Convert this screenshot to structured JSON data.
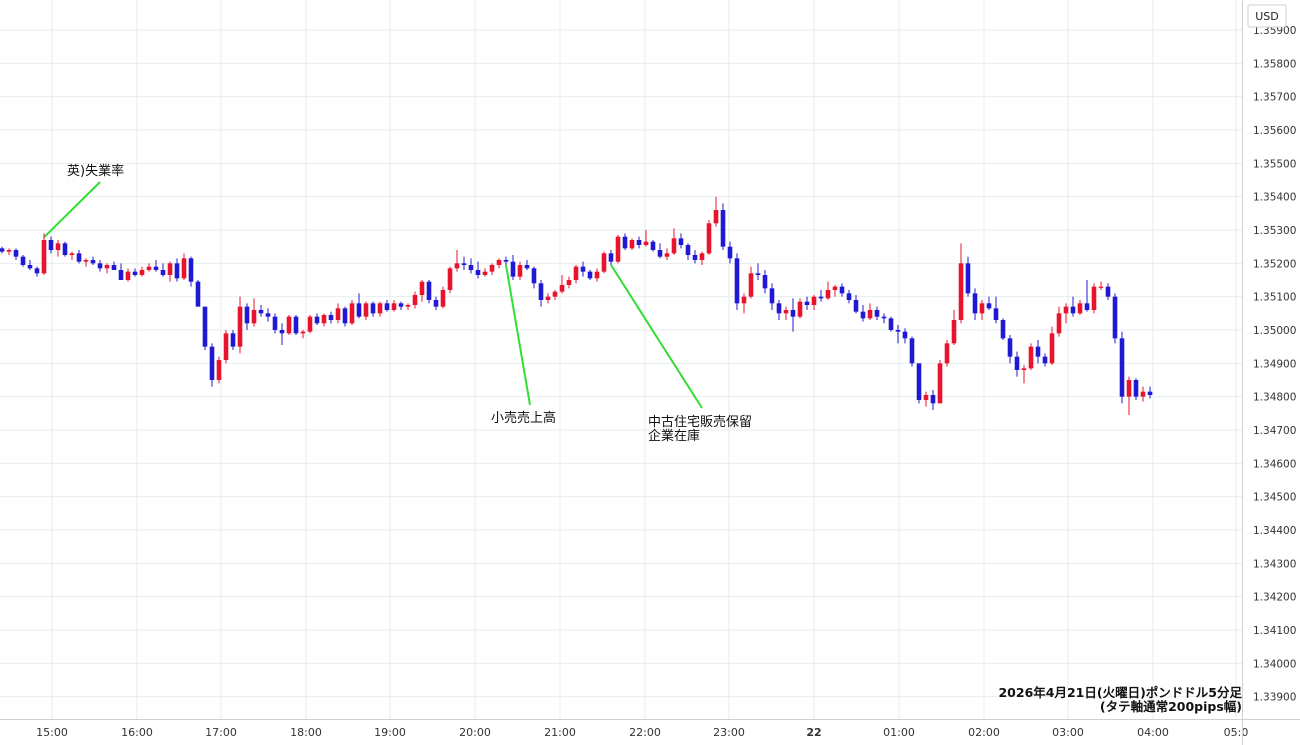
{
  "chart_data": {
    "type": "candlestick",
    "currency_badge": "USD",
    "y_ticks": [
      "1.35900",
      "1.35800",
      "1.35700",
      "1.35600",
      "1.35500",
      "1.35400",
      "1.35300",
      "1.35200",
      "1.35100",
      "1.35000",
      "1.34900",
      "1.34800",
      "1.34700",
      "1.34600",
      "1.34500",
      "1.34400",
      "1.34300",
      "1.34200",
      "1.34100",
      "1.34000",
      "1.33900"
    ],
    "ylim": [
      1.3386,
      1.3596
    ],
    "x_ticks": [
      "15:00",
      "16:00",
      "17:00",
      "18:00",
      "19:00",
      "20:00",
      "21:00",
      "22:00",
      "23:00",
      "22",
      "01:00",
      "02:00",
      "03:00",
      "04:00",
      "05:0"
    ],
    "bold_x_tick": "22",
    "footer_line1": "2026年4月21日(火曜日)ポンドドル5分足",
    "footer_line2": "(タテ軸通常200pips幅)",
    "annotations": [
      {
        "text": "英)失業率",
        "bar": 6
      },
      {
        "text": "小売売上高",
        "bar": 72
      },
      {
        "text": "中古住宅販売保留",
        "text2": "企業在庫",
        "bar": 87
      }
    ],
    "colors": {
      "up": "#e8142d",
      "down": "#1f19d4",
      "grid": "#e6eeee",
      "axis": "#d0d0d0",
      "annotation_line": "#33dd33"
    },
    "candles": [
      [
        1.35245,
        1.3525,
        1.3523,
        1.35235
      ],
      [
        1.35235,
        1.35245,
        1.35225,
        1.3524
      ],
      [
        1.3524,
        1.35245,
        1.3521,
        1.3522
      ],
      [
        1.3522,
        1.35225,
        1.3519,
        1.35195
      ],
      [
        1.35195,
        1.3521,
        1.3518,
        1.35185
      ],
      [
        1.35185,
        1.3519,
        1.3516,
        1.3517
      ],
      [
        1.3517,
        1.3529,
        1.35165,
        1.3527
      ],
      [
        1.3527,
        1.3528,
        1.3523,
        1.3524
      ],
      [
        1.3524,
        1.3527,
        1.3522,
        1.3526
      ],
      [
        1.3526,
        1.35265,
        1.3522,
        1.35225
      ],
      [
        1.35225,
        1.35235,
        1.3521,
        1.3523
      ],
      [
        1.3523,
        1.3524,
        1.352,
        1.35205
      ],
      [
        1.35205,
        1.35215,
        1.3519,
        1.3521
      ],
      [
        1.3521,
        1.3522,
        1.35195,
        1.352
      ],
      [
        1.352,
        1.3521,
        1.35175,
        1.35185
      ],
      [
        1.35185,
        1.352,
        1.3517,
        1.35195
      ],
      [
        1.35195,
        1.35205,
        1.3518,
        1.3518
      ],
      [
        1.3518,
        1.352,
        1.3515,
        1.3515
      ],
      [
        1.3515,
        1.35185,
        1.35145,
        1.35175
      ],
      [
        1.35175,
        1.35185,
        1.3516,
        1.35165
      ],
      [
        1.35165,
        1.3519,
        1.3516,
        1.3518
      ],
      [
        1.3518,
        1.352,
        1.35175,
        1.3519
      ],
      [
        1.3519,
        1.3521,
        1.35175,
        1.3518
      ],
      [
        1.3518,
        1.352,
        1.3516,
        1.35165
      ],
      [
        1.35165,
        1.35205,
        1.35145,
        1.352
      ],
      [
        1.352,
        1.35215,
        1.35145,
        1.35155
      ],
      [
        1.35155,
        1.3523,
        1.3515,
        1.35215
      ],
      [
        1.35215,
        1.3522,
        1.3513,
        1.35145
      ],
      [
        1.35145,
        1.3515,
        1.3507,
        1.3507
      ],
      [
        1.3507,
        1.3507,
        1.3494,
        1.3495
      ],
      [
        1.3495,
        1.3496,
        1.3483,
        1.3485
      ],
      [
        1.3485,
        1.3492,
        1.3484,
        1.3491
      ],
      [
        1.3491,
        1.35,
        1.349,
        1.3499
      ],
      [
        1.3499,
        1.35,
        1.3494,
        1.3495
      ],
      [
        1.3495,
        1.351,
        1.3493,
        1.3507
      ],
      [
        1.3507,
        1.3508,
        1.35,
        1.3502
      ],
      [
        1.3502,
        1.35095,
        1.3501,
        1.3506
      ],
      [
        1.3506,
        1.35075,
        1.3504,
        1.3505
      ],
      [
        1.3505,
        1.35065,
        1.35025,
        1.3504
      ],
      [
        1.3504,
        1.3505,
        1.3499,
        1.35
      ],
      [
        1.35,
        1.3502,
        1.34955,
        1.3499
      ],
      [
        1.3499,
        1.35045,
        1.34985,
        1.3504
      ],
      [
        1.3504,
        1.35045,
        1.34985,
        1.3499
      ],
      [
        1.3499,
        1.35,
        1.34975,
        1.34995
      ],
      [
        1.34995,
        1.35045,
        1.3499,
        1.3504
      ],
      [
        1.3504,
        1.3505,
        1.35015,
        1.3502
      ],
      [
        1.3502,
        1.3505,
        1.3501,
        1.35045
      ],
      [
        1.35045,
        1.35055,
        1.3502,
        1.3503
      ],
      [
        1.3503,
        1.3508,
        1.3502,
        1.35065
      ],
      [
        1.35065,
        1.3507,
        1.3501,
        1.3502
      ],
      [
        1.3502,
        1.3509,
        1.35015,
        1.3508
      ],
      [
        1.3508,
        1.3511,
        1.35035,
        1.3504
      ],
      [
        1.3504,
        1.35085,
        1.3503,
        1.3508
      ],
      [
        1.3508,
        1.35085,
        1.3504,
        1.3505
      ],
      [
        1.3505,
        1.35085,
        1.3504,
        1.3508
      ],
      [
        1.3508,
        1.3509,
        1.35055,
        1.3506
      ],
      [
        1.3506,
        1.3509,
        1.35055,
        1.3508
      ],
      [
        1.3508,
        1.35085,
        1.3506,
        1.3507
      ],
      [
        1.3507,
        1.3508,
        1.3506,
        1.35075
      ],
      [
        1.35075,
        1.35115,
        1.35065,
        1.35105
      ],
      [
        1.35105,
        1.3515,
        1.35085,
        1.35145
      ],
      [
        1.35145,
        1.3515,
        1.3508,
        1.3509
      ],
      [
        1.3509,
        1.351,
        1.3506,
        1.3507
      ],
      [
        1.3507,
        1.3513,
        1.35065,
        1.3512
      ],
      [
        1.3512,
        1.3519,
        1.3511,
        1.35185
      ],
      [
        1.35185,
        1.3524,
        1.35175,
        1.352
      ],
      [
        1.352,
        1.3522,
        1.3518,
        1.35195
      ],
      [
        1.35195,
        1.35215,
        1.3517,
        1.3518
      ],
      [
        1.3518,
        1.35205,
        1.35155,
        1.35165
      ],
      [
        1.35165,
        1.35185,
        1.3516,
        1.35175
      ],
      [
        1.35175,
        1.352,
        1.35165,
        1.35195
      ],
      [
        1.35195,
        1.35215,
        1.35185,
        1.3521
      ],
      [
        1.3521,
        1.3522,
        1.35195,
        1.35205
      ],
      [
        1.35205,
        1.35225,
        1.3515,
        1.3516
      ],
      [
        1.3516,
        1.35205,
        1.3515,
        1.35195
      ],
      [
        1.35195,
        1.3521,
        1.3518,
        1.35185
      ],
      [
        1.35185,
        1.3519,
        1.35125,
        1.3514
      ],
      [
        1.3514,
        1.3515,
        1.3507,
        1.3509
      ],
      [
        1.3509,
        1.3511,
        1.3508,
        1.351
      ],
      [
        1.351,
        1.3512,
        1.3509,
        1.35115
      ],
      [
        1.35115,
        1.35165,
        1.3511,
        1.35135
      ],
      [
        1.35135,
        1.3516,
        1.35125,
        1.3515
      ],
      [
        1.3515,
        1.35195,
        1.3514,
        1.3519
      ],
      [
        1.3519,
        1.35205,
        1.3516,
        1.35175
      ],
      [
        1.35175,
        1.3518,
        1.3515,
        1.35155
      ],
      [
        1.35155,
        1.35185,
        1.35145,
        1.35175
      ],
      [
        1.35175,
        1.35235,
        1.3517,
        1.3523
      ],
      [
        1.3523,
        1.3524,
        1.35195,
        1.35205
      ],
      [
        1.35205,
        1.35285,
        1.352,
        1.3528
      ],
      [
        1.3528,
        1.3529,
        1.3524,
        1.35245
      ],
      [
        1.35245,
        1.35275,
        1.3524,
        1.3527
      ],
      [
        1.3527,
        1.3528,
        1.35245,
        1.35255
      ],
      [
        1.35255,
        1.353,
        1.3525,
        1.35265
      ],
      [
        1.35265,
        1.3527,
        1.35235,
        1.3524
      ],
      [
        1.3524,
        1.3526,
        1.35215,
        1.3522
      ],
      [
        1.3522,
        1.35245,
        1.3521,
        1.3523
      ],
      [
        1.3523,
        1.35305,
        1.35225,
        1.35275
      ],
      [
        1.35275,
        1.3529,
        1.35245,
        1.35255
      ],
      [
        1.35255,
        1.3526,
        1.3521,
        1.35225
      ],
      [
        1.35225,
        1.3524,
        1.352,
        1.3521
      ],
      [
        1.3521,
        1.35235,
        1.35195,
        1.3523
      ],
      [
        1.3523,
        1.3533,
        1.35225,
        1.3532
      ],
      [
        1.3532,
        1.354,
        1.3531,
        1.3536
      ],
      [
        1.3536,
        1.3538,
        1.3524,
        1.3525
      ],
      [
        1.3525,
        1.35265,
        1.352,
        1.35215
      ],
      [
        1.35215,
        1.3523,
        1.3506,
        1.3508
      ],
      [
        1.3508,
        1.3511,
        1.3505,
        1.351
      ],
      [
        1.351,
        1.3519,
        1.35095,
        1.3517
      ],
      [
        1.3517,
        1.352,
        1.3515,
        1.35165
      ],
      [
        1.35165,
        1.3518,
        1.3511,
        1.35125
      ],
      [
        1.35125,
        1.3514,
        1.3506,
        1.3508
      ],
      [
        1.3508,
        1.3509,
        1.3503,
        1.3505
      ],
      [
        1.3505,
        1.3507,
        1.3503,
        1.3506
      ],
      [
        1.3506,
        1.35095,
        1.34995,
        1.3504
      ],
      [
        1.3504,
        1.35095,
        1.35035,
        1.35085
      ],
      [
        1.35085,
        1.351,
        1.3506,
        1.35075
      ],
      [
        1.35075,
        1.35105,
        1.3506,
        1.351
      ],
      [
        1.351,
        1.3512,
        1.35085,
        1.35095
      ],
      [
        1.35095,
        1.35145,
        1.3509,
        1.3512
      ],
      [
        1.3512,
        1.35135,
        1.351,
        1.3513
      ],
      [
        1.3513,
        1.3514,
        1.351,
        1.3511
      ],
      [
        1.3511,
        1.3512,
        1.3508,
        1.3509
      ],
      [
        1.3509,
        1.35105,
        1.3505,
        1.35055
      ],
      [
        1.35055,
        1.35075,
        1.35025,
        1.35035
      ],
      [
        1.35035,
        1.3508,
        1.3503,
        1.3506
      ],
      [
        1.3506,
        1.3507,
        1.3503,
        1.3504
      ],
      [
        1.3504,
        1.3505,
        1.3502,
        1.35035
      ],
      [
        1.35035,
        1.3504,
        1.34995,
        1.35
      ],
      [
        1.35,
        1.35015,
        1.3496,
        1.34995
      ],
      [
        1.34995,
        1.35005,
        1.3496,
        1.34975
      ],
      [
        1.34975,
        1.3498,
        1.3489,
        1.349
      ],
      [
        1.349,
        1.349,
        1.3478,
        1.3479
      ],
      [
        1.3479,
        1.34815,
        1.3477,
        1.34805
      ],
      [
        1.34805,
        1.3482,
        1.3476,
        1.3478
      ],
      [
        1.3478,
        1.3491,
        1.3478,
        1.349
      ],
      [
        1.349,
        1.3497,
        1.3489,
        1.3496
      ],
      [
        1.3496,
        1.3506,
        1.34955,
        1.3503
      ],
      [
        1.3503,
        1.3526,
        1.3502,
        1.352
      ],
      [
        1.352,
        1.3522,
        1.351,
        1.3511
      ],
      [
        1.3511,
        1.35125,
        1.3503,
        1.3505
      ],
      [
        1.3505,
        1.3509,
        1.3503,
        1.3508
      ],
      [
        1.3508,
        1.351,
        1.3506,
        1.35065
      ],
      [
        1.35065,
        1.351,
        1.3502,
        1.3503
      ],
      [
        1.3503,
        1.35035,
        1.3497,
        1.34975
      ],
      [
        1.34975,
        1.34985,
        1.349,
        1.3492
      ],
      [
        1.3492,
        1.34935,
        1.3486,
        1.3488
      ],
      [
        1.3488,
        1.34895,
        1.3484,
        1.34885
      ],
      [
        1.34885,
        1.3496,
        1.3488,
        1.3495
      ],
      [
        1.3495,
        1.3497,
        1.349,
        1.3492
      ],
      [
        1.3492,
        1.3493,
        1.3489,
        1.349
      ],
      [
        1.349,
        1.3501,
        1.34895,
        1.3499
      ],
      [
        1.3499,
        1.3507,
        1.3498,
        1.3505
      ],
      [
        1.3505,
        1.3508,
        1.3502,
        1.3507
      ],
      [
        1.3507,
        1.351,
        1.3504,
        1.3505
      ],
      [
        1.3505,
        1.3509,
        1.35045,
        1.3508
      ],
      [
        1.3508,
        1.3515,
        1.35055,
        1.3506
      ],
      [
        1.3506,
        1.3514,
        1.3505,
        1.3513
      ],
      [
        1.3513,
        1.35145,
        1.3512,
        1.3513
      ],
      [
        1.3513,
        1.3514,
        1.3509,
        1.351
      ],
      [
        1.351,
        1.3511,
        1.3496,
        1.34975
      ],
      [
        1.34975,
        1.34995,
        1.3478,
        1.348
      ],
      [
        1.348,
        1.3486,
        1.34745,
        1.3485
      ],
      [
        1.3485,
        1.34855,
        1.3479,
        1.348
      ],
      [
        1.348,
        1.3483,
        1.34785,
        1.34815
      ],
      [
        1.34815,
        1.3483,
        1.34795,
        1.34805
      ]
    ]
  }
}
